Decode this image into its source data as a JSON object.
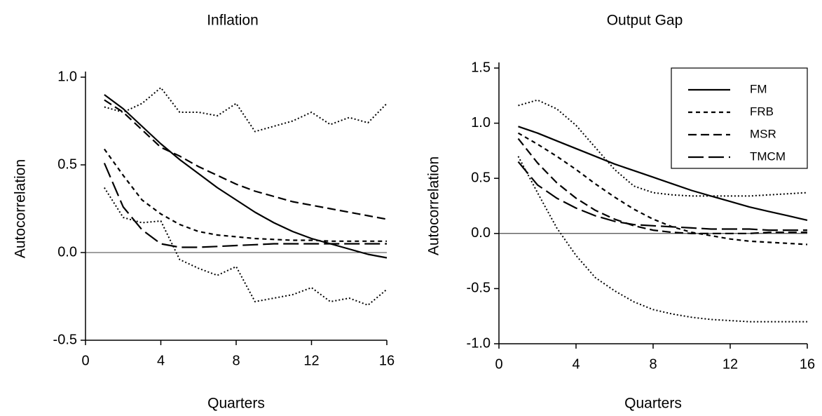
{
  "chart_data": [
    {
      "type": "line",
      "title": "Inflation",
      "xlabel": "Quarters",
      "ylabel": "Autocorrelation",
      "xlim": [
        0,
        16
      ],
      "ylim": [
        -0.5,
        1.0
      ],
      "xticks": [
        "0",
        "4",
        "8",
        "12",
        "16"
      ],
      "yticks": [
        "-0.5",
        "0.0",
        "0.5",
        "1.0"
      ],
      "zero_line": true,
      "grid": false,
      "x": [
        1,
        2,
        3,
        4,
        5,
        6,
        7,
        8,
        9,
        10,
        11,
        12,
        13,
        14,
        15,
        16
      ],
      "series": [
        {
          "style": "solid",
          "values": [
            0.9,
            0.82,
            0.72,
            0.62,
            0.53,
            0.45,
            0.37,
            0.3,
            0.23,
            0.17,
            0.12,
            0.08,
            0.05,
            0.02,
            -0.01,
            -0.03
          ]
        },
        {
          "style": "short-dash",
          "values": [
            0.59,
            0.44,
            0.3,
            0.22,
            0.16,
            0.12,
            0.1,
            0.09,
            0.08,
            0.075,
            0.07,
            0.07,
            0.065,
            0.065,
            0.065,
            0.065
          ]
        },
        {
          "style": "medium-dash",
          "values": [
            0.87,
            0.8,
            0.7,
            0.6,
            0.55,
            0.49,
            0.44,
            0.39,
            0.35,
            0.32,
            0.29,
            0.27,
            0.25,
            0.23,
            0.21,
            0.19
          ]
        },
        {
          "style": "long-dash",
          "values": [
            0.51,
            0.26,
            0.13,
            0.05,
            0.03,
            0.03,
            0.035,
            0.04,
            0.045,
            0.05,
            0.05,
            0.05,
            0.05,
            0.05,
            0.05,
            0.05
          ]
        },
        {
          "style": "dotted",
          "values": [
            0.83,
            0.8,
            0.85,
            0.94,
            0.8,
            0.8,
            0.78,
            0.85,
            0.69,
            0.72,
            0.75,
            0.8,
            0.73,
            0.77,
            0.74,
            0.85
          ]
        },
        {
          "style": "dotted",
          "values": [
            0.37,
            0.2,
            0.17,
            0.18,
            -0.04,
            -0.09,
            -0.13,
            -0.08,
            -0.28,
            -0.26,
            -0.24,
            -0.2,
            -0.28,
            -0.26,
            -0.3,
            -0.21
          ]
        }
      ]
    },
    {
      "type": "line",
      "title": "Output Gap",
      "xlabel": "Quarters",
      "ylabel": "Autocorrelation",
      "xlim": [
        0,
        16
      ],
      "ylim": [
        -1.0,
        1.5
      ],
      "xticks": [
        "0",
        "4",
        "8",
        "12",
        "16"
      ],
      "yticks": [
        "-1.0",
        "-0.5",
        "0.0",
        "0.5",
        "1.0",
        "1.5"
      ],
      "zero_line": true,
      "grid": false,
      "legend": {
        "placement": "top-right",
        "entries": [
          "FM",
          "FRB",
          "MSR",
          "TMCM"
        ]
      },
      "x": [
        1,
        2,
        3,
        4,
        5,
        6,
        7,
        8,
        9,
        10,
        11,
        12,
        13,
        14,
        15,
        16
      ],
      "series": [
        {
          "name": "FM",
          "style": "solid",
          "values": [
            0.97,
            0.91,
            0.84,
            0.77,
            0.7,
            0.63,
            0.57,
            0.51,
            0.45,
            0.39,
            0.34,
            0.29,
            0.24,
            0.2,
            0.16,
            0.12
          ]
        },
        {
          "name": "FRB",
          "style": "short-dash",
          "values": [
            0.91,
            0.81,
            0.7,
            0.58,
            0.45,
            0.33,
            0.22,
            0.13,
            0.06,
            0.01,
            -0.02,
            -0.05,
            -0.07,
            -0.08,
            -0.09,
            -0.1
          ]
        },
        {
          "name": "MSR",
          "style": "medium-dash",
          "values": [
            0.86,
            0.64,
            0.46,
            0.32,
            0.21,
            0.13,
            0.07,
            0.03,
            0.01,
            0.0,
            0.0,
            0.0,
            0.0,
            0.01,
            0.01,
            0.01
          ]
        },
        {
          "name": "TMCM",
          "style": "long-dash",
          "values": [
            0.65,
            0.44,
            0.32,
            0.23,
            0.16,
            0.11,
            0.08,
            0.07,
            0.06,
            0.05,
            0.04,
            0.04,
            0.04,
            0.03,
            0.03,
            0.03
          ]
        },
        {
          "style": "dotted",
          "values": [
            1.16,
            1.21,
            1.13,
            0.98,
            0.78,
            0.58,
            0.43,
            0.37,
            0.35,
            0.34,
            0.34,
            0.34,
            0.34,
            0.35,
            0.36,
            0.37
          ]
        },
        {
          "style": "dotted",
          "values": [
            0.7,
            0.37,
            0.05,
            -0.2,
            -0.4,
            -0.52,
            -0.62,
            -0.69,
            -0.73,
            -0.76,
            -0.78,
            -0.79,
            -0.8,
            -0.8,
            -0.8,
            -0.8
          ]
        }
      ]
    }
  ]
}
